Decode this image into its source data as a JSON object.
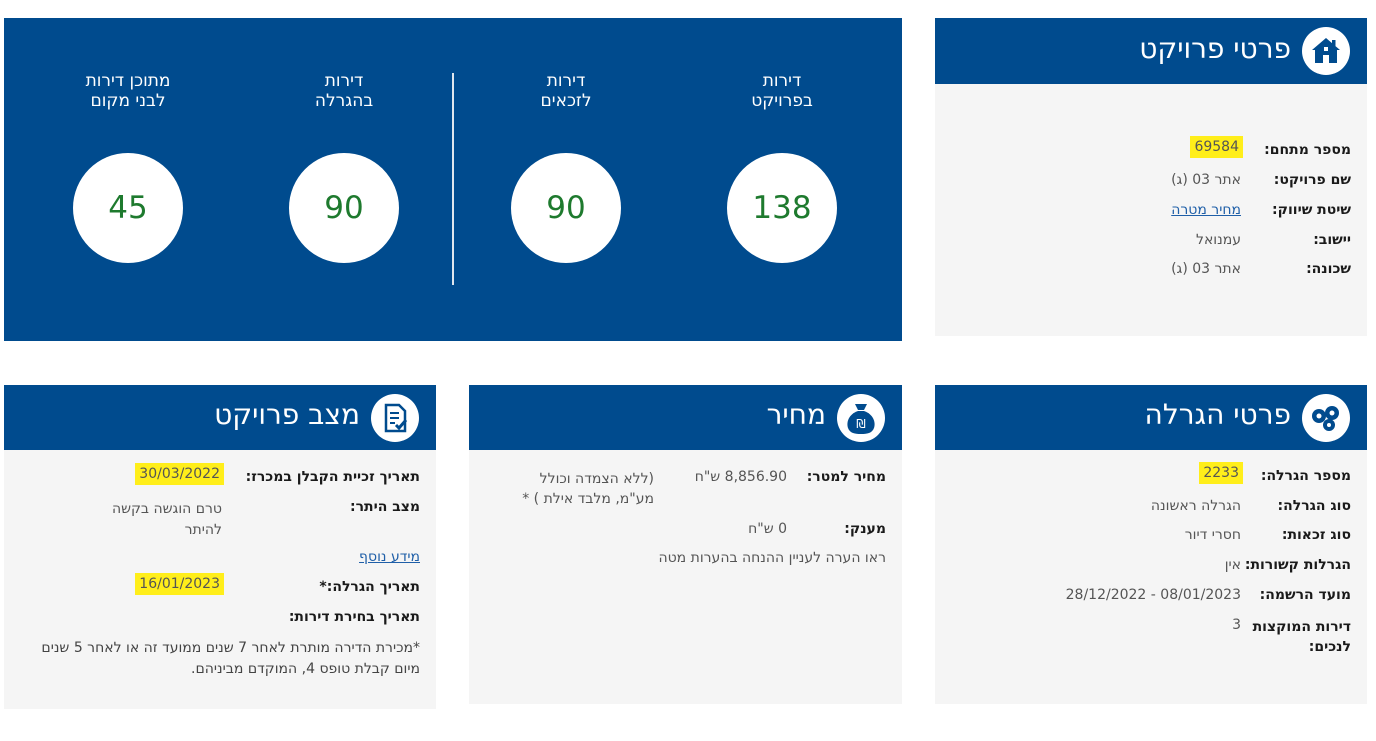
{
  "stats": {
    "items": [
      {
        "label_line1": "דירות",
        "label_line2": "בפרויקט",
        "value": "138"
      },
      {
        "label_line1": "דירות",
        "label_line2": "לזכאים",
        "value": "90"
      },
      {
        "label_line1": "דירות",
        "label_line2": "בהגרלה",
        "value": "90"
      },
      {
        "label_line1": "מתוכן דירות",
        "label_line2": "לבני מקום",
        "value": "45"
      }
    ]
  },
  "project_details": {
    "title": "פרטי פרויקט",
    "icon": "home-icon",
    "fields": [
      {
        "label": "מספר מתחם:",
        "value": "69584"
      },
      {
        "label": "שם פרויקט:",
        "value": "אתר 03 (ג)"
      },
      {
        "label": "שיטת שיווק:",
        "value": "מחיר מטרה"
      },
      {
        "label": "יישוב:",
        "value": "עמנואל"
      },
      {
        "label": "שכונה:",
        "value": "אתר 03 (ג)"
      }
    ]
  },
  "lottery_details": {
    "title": "פרטי הגרלה",
    "icon": "lottery-balls-icon",
    "fields": [
      {
        "label": "מספר הגרלה:",
        "value": "2233"
      },
      {
        "label": "סוג הגרלה:",
        "value": "הגרלה ראשונה"
      },
      {
        "label": "סוג זכאות:",
        "value": "חסרי דיור"
      },
      {
        "label": "הגרלות קשורות:",
        "value": "אין"
      },
      {
        "label": "מועד הרשמה:",
        "value": "08/01/2023 - 28/12/2022"
      },
      {
        "label_line1": "דירות המוקצות",
        "label_line2": "לנכים:",
        "value": "3"
      }
    ]
  },
  "price": {
    "title": "מחיר",
    "icon": "money-bag-icon",
    "price_label": "מחיר למטר:",
    "price_value": "8,856.90 ש\"ח",
    "price_note_line1": "(ללא הצמדה וכולל",
    "price_note_line2": "מע\"מ, מלבד אילת ) *",
    "grant_label": "מענק:",
    "grant_value": "0 ש\"ח",
    "note": "ראו הערה לעניין ההנחה בהערות מטה"
  },
  "project_status": {
    "title": "מצב פרויקט",
    "icon": "document-check-icon",
    "win_date_label": "תאריך זכיית הקבלן במכרז:",
    "win_date_value": "30/03/2022",
    "permit_label": "מצב היתר:",
    "permit_value_line1": "טרם הוגשה בקשה",
    "permit_value_line2": "להיתר",
    "more_info": "מידע נוסף",
    "lottery_date_label": "תאריך הגרלה:*",
    "lottery_date_value": "16/01/2023",
    "selection_date_label": "תאריך בחירת דירות:",
    "footnote_line1": "*מכירת הדירה מותרת לאחר 7 שנים ממועד זה או לאחר 5 שנים",
    "footnote_line2": "מיום קבלת טופס 4, המוקדם מביניהם."
  }
}
